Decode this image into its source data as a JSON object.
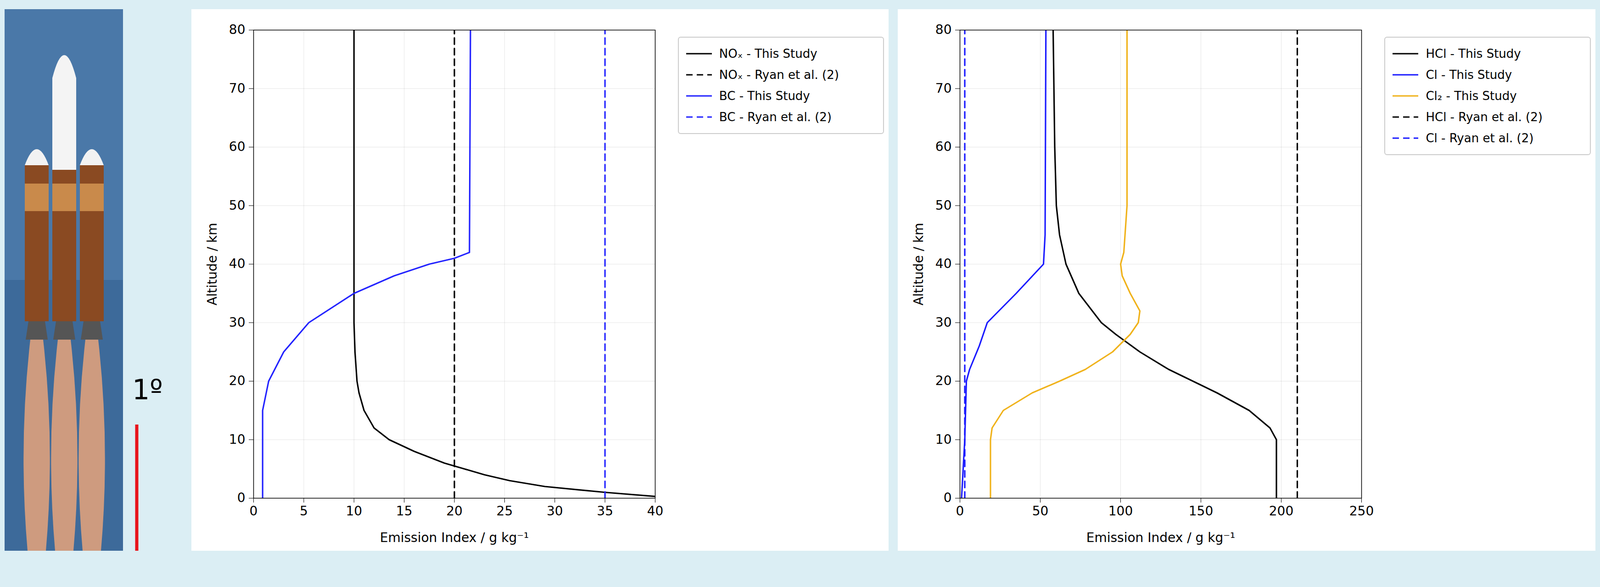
{
  "annotation": "1º",
  "chart_data": [
    {
      "type": "line",
      "x_label": "Emission Index / g kg⁻¹",
      "y_label": "Altitude / km",
      "xlim": [
        0,
        40
      ],
      "xticks": [
        0,
        5,
        10,
        15,
        20,
        25,
        30,
        35,
        40
      ],
      "ylim": [
        0,
        80
      ],
      "yticks": [
        0,
        10,
        20,
        30,
        40,
        50,
        60,
        70,
        80
      ],
      "grid": true,
      "legend": "right",
      "series": [
        {
          "name": "NOₓ - This Study",
          "color": "#000000",
          "line_style": "solid",
          "x": [
            40,
            35,
            29,
            25.5,
            23,
            21,
            19,
            16,
            13.5,
            12,
            11,
            10.5,
            10.3,
            10.1,
            10,
            10
          ],
          "y": [
            0.3,
            1,
            2,
            3,
            4,
            5,
            6,
            8,
            10,
            12,
            15,
            18,
            20,
            25,
            30,
            80
          ]
        },
        {
          "name": "NOₓ - Ryan et al. (2)",
          "color": "#000000",
          "line_style": "dashed",
          "x": [
            20,
            20
          ],
          "y": [
            0,
            80
          ]
        },
        {
          "name": "BC - This Study",
          "color": "#2222ff",
          "line_style": "solid",
          "x": [
            0.9,
            0.9,
            1.5,
            3,
            5.5,
            10,
            14,
            17.5,
            20,
            21.5,
            21.6
          ],
          "y": [
            0,
            15,
            20,
            25,
            30,
            35,
            38,
            40,
            41,
            42,
            80
          ]
        },
        {
          "name": "BC - Ryan et al. (2)",
          "color": "#2222ff",
          "line_style": "dashed",
          "x": [
            35,
            35
          ],
          "y": [
            0,
            80
          ]
        }
      ]
    },
    {
      "type": "line",
      "x_label": "Emission Index / g kg⁻¹",
      "y_label": "Altitude / km",
      "xlim": [
        0,
        250
      ],
      "xticks": [
        0,
        50,
        100,
        150,
        200,
        250
      ],
      "ylim": [
        0,
        80
      ],
      "yticks": [
        0,
        10,
        20,
        30,
        40,
        50,
        60,
        70,
        80
      ],
      "grid": true,
      "legend": "right",
      "series": [
        {
          "name": "HCl - This Study",
          "color": "#000000",
          "line_style": "solid",
          "x": [
            197,
            197,
            193,
            180,
            160,
            145,
            130,
            112,
            97,
            88,
            74,
            66,
            62,
            60,
            59,
            58
          ],
          "y": [
            0,
            10,
            12,
            15,
            18,
            20,
            22,
            25,
            28,
            30,
            35,
            40,
            45,
            50,
            60,
            80
          ]
        },
        {
          "name": "Cl - This Study",
          "color": "#1a1aff",
          "line_style": "solid",
          "x": [
            1,
            3,
            4,
            6,
            12,
            17,
            35,
            52,
            53,
            53.5
          ],
          "y": [
            0,
            10,
            20,
            22,
            26,
            30,
            35,
            40,
            45,
            80
          ]
        },
        {
          "name": "Cl₂ - This Study",
          "color": "#f0b21a",
          "line_style": "solid",
          "x": [
            19,
            19,
            20,
            27,
            45,
            62,
            78,
            95,
            106,
            111,
            112,
            106,
            101,
            100,
            102,
            104,
            104
          ],
          "y": [
            0,
            10,
            12,
            15,
            18,
            20,
            22,
            25,
            28,
            30,
            32,
            35,
            38,
            40,
            42,
            50,
            80
          ]
        },
        {
          "name": "HCl - Ryan et al. (2)",
          "color": "#000000",
          "line_style": "dashed",
          "x": [
            210,
            210
          ],
          "y": [
            0,
            80
          ]
        },
        {
          "name": "Cl - Ryan et al. (2)",
          "color": "#1a1aff",
          "line_style": "dashed",
          "x": [
            3,
            3
          ],
          "y": [
            0,
            80
          ]
        }
      ]
    }
  ]
}
